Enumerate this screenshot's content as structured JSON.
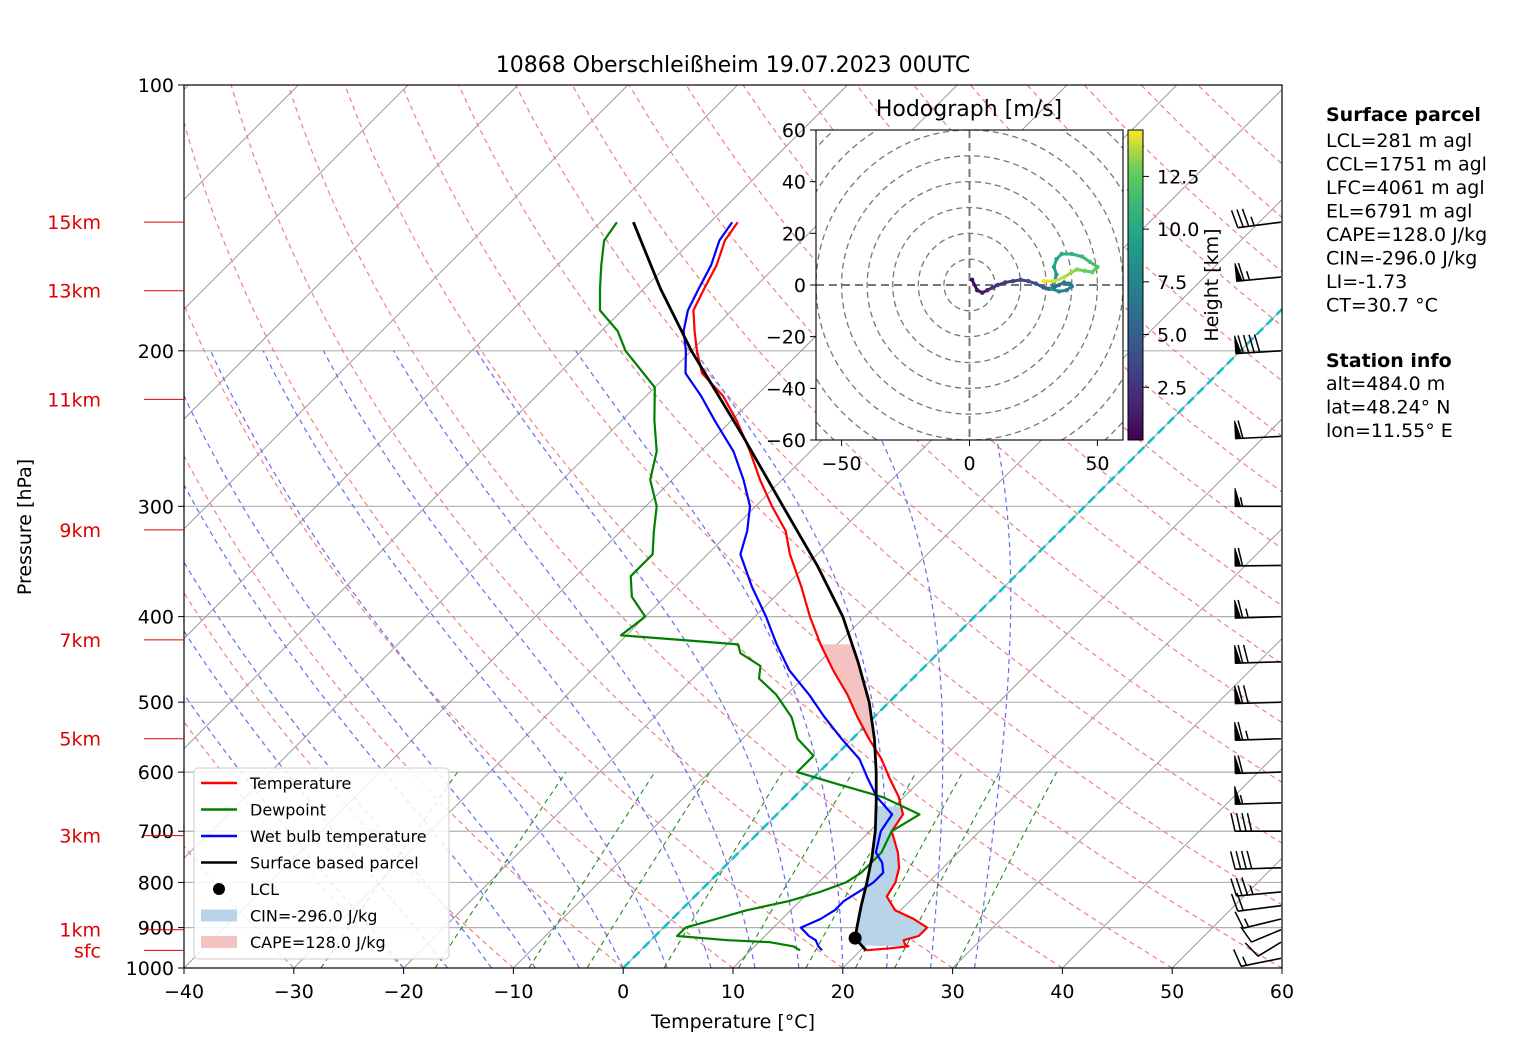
{
  "chart_data": [
    {
      "type": "line",
      "title": "10868 Oberschleißheim 19.07.2023 00UTC",
      "xlabel": "Temperature [°C]",
      "ylabel": "Pressure [hPa]",
      "x_ticks": [
        "−40",
        "−30",
        "−20",
        "−10",
        "0",
        "10",
        "20",
        "30",
        "40",
        "50",
        "60"
      ],
      "x_tick_values": [
        -40,
        -30,
        -20,
        -10,
        0,
        10,
        20,
        30,
        40,
        50,
        60
      ],
      "xlim": [
        -40,
        60
      ],
      "y_ticks": [
        "100",
        "200",
        "300",
        "400",
        "500",
        "600",
        "700",
        "800",
        "900",
        "1000"
      ],
      "y_tick_values": [
        100,
        200,
        300,
        400,
        500,
        600,
        700,
        800,
        900,
        1000
      ],
      "ylim": [
        1000,
        100
      ],
      "yscale": "log",
      "height_labels": [
        {
          "label": "15km",
          "p": 143
        },
        {
          "label": "13km",
          "p": 171
        },
        {
          "label": "11km",
          "p": 227
        },
        {
          "label": "9km",
          "p": 319
        },
        {
          "label": "7km",
          "p": 425
        },
        {
          "label": "5km",
          "p": 550
        },
        {
          "label": "3km",
          "p": 708
        },
        {
          "label": "1km",
          "p": 905
        },
        {
          "label": "sfc",
          "p": 955
        }
      ],
      "legend": [
        {
          "label": "Temperature",
          "color": "#ff0000",
          "kind": "line"
        },
        {
          "label": "Dewpoint",
          "color": "#008000",
          "kind": "line"
        },
        {
          "label": "Wet bulb temperature",
          "color": "#0000ff",
          "kind": "line"
        },
        {
          "label": "Surface based parcel",
          "color": "#000000",
          "kind": "line"
        },
        {
          "label": "LCL",
          "color": "#000000",
          "kind": "dot"
        },
        {
          "label": "CIN=-296.0 J/kg",
          "color": "#b9d3e8",
          "kind": "patch"
        },
        {
          "label": "CAPE=128.0 J/kg",
          "color": "#f5c2c2",
          "kind": "patch"
        }
      ],
      "legend_location": "lower-left",
      "lcl": {
        "p": 925,
        "t": 18.4
      },
      "series": [
        {
          "name": "Temperature",
          "color": "#ff0000",
          "points": [
            [
              955,
              20.5
            ],
            [
              950,
              22.5
            ],
            [
              945,
              24.0
            ],
            [
              940,
              23.5
            ],
            [
              930,
              23.0
            ],
            [
              920,
              24.0
            ],
            [
              900,
              24.0
            ],
            [
              880,
              22.0
            ],
            [
              860,
              19.5
            ],
            [
              830,
              17.5
            ],
            [
              800,
              17.0
            ],
            [
              770,
              16.0
            ],
            [
              740,
              14.5
            ],
            [
              700,
              12.0
            ],
            [
              670,
              11.5
            ],
            [
              640,
              9.5
            ],
            [
              610,
              7.0
            ],
            [
              580,
              4.5
            ],
            [
              550,
              1.5
            ],
            [
              520,
              -1.5
            ],
            [
              490,
              -4.5
            ],
            [
              460,
              -8.0
            ],
            [
              430,
              -11.5
            ],
            [
              400,
              -15.0
            ],
            [
              370,
              -18.5
            ],
            [
              340,
              -22.5
            ],
            [
              320,
              -25.0
            ],
            [
              300,
              -28.5
            ],
            [
              280,
              -32.0
            ],
            [
              260,
              -35.5
            ],
            [
              240,
              -39.5
            ],
            [
              225,
              -43.0
            ],
            [
              212,
              -47.0
            ],
            [
              200,
              -49.5
            ],
            [
              190,
              -51.5
            ],
            [
              180,
              -53.5
            ],
            [
              170,
              -54.5
            ],
            [
              160,
              -55.5
            ],
            [
              150,
              -57.0
            ],
            [
              143,
              -57.5
            ]
          ]
        },
        {
          "name": "Dewpoint",
          "color": "#008000",
          "points": [
            [
              955,
              14.5
            ],
            [
              945,
              13.5
            ],
            [
              935,
              11.0
            ],
            [
              930,
              7.0
            ],
            [
              920,
              2.0
            ],
            [
              900,
              2.0
            ],
            [
              880,
              4.0
            ],
            [
              860,
              6.0
            ],
            [
              840,
              9.0
            ],
            [
              820,
              11.0
            ],
            [
              800,
              12.5
            ],
            [
              780,
              13.0
            ],
            [
              760,
              13.0
            ],
            [
              740,
              13.0
            ],
            [
              700,
              12.0
            ],
            [
              670,
              13.0
            ],
            [
              640,
              8.0
            ],
            [
              620,
              3.0
            ],
            [
              600,
              -2.0
            ],
            [
              575,
              -2.0
            ],
            [
              550,
              -5.0
            ],
            [
              520,
              -7.5
            ],
            [
              490,
              -11.0
            ],
            [
              470,
              -14.0
            ],
            [
              455,
              -15.0
            ],
            [
              440,
              -18.0
            ],
            [
              430,
              -19.0
            ],
            [
              420,
              -30.5
            ],
            [
              400,
              -30.0
            ],
            [
              380,
              -33.0
            ],
            [
              360,
              -35.0
            ],
            [
              340,
              -35.0
            ],
            [
              320,
              -37.0
            ],
            [
              300,
              -39.0
            ],
            [
              280,
              -42.0
            ],
            [
              260,
              -44.0
            ],
            [
              240,
              -47.0
            ],
            [
              220,
              -50.0
            ],
            [
              200,
              -56.0
            ],
            [
              190,
              -58.5
            ],
            [
              180,
              -62.0
            ],
            [
              170,
              -64.0
            ],
            [
              160,
              -66.0
            ],
            [
              150,
              -68.0
            ],
            [
              143,
              -68.5
            ]
          ]
        },
        {
          "name": "Wet bulb temperature",
          "color": "#0000ff",
          "points": [
            [
              955,
              16.5
            ],
            [
              945,
              15.8
            ],
            [
              930,
              15.0
            ],
            [
              920,
              14.0
            ],
            [
              900,
              12.5
            ],
            [
              880,
              13.5
            ],
            [
              860,
              14.0
            ],
            [
              840,
              14.0
            ],
            [
              820,
              14.5
            ],
            [
              800,
              15.0
            ],
            [
              780,
              15.0
            ],
            [
              760,
              14.0
            ],
            [
              740,
              12.5
            ],
            [
              700,
              11.0
            ],
            [
              670,
              10.5
            ],
            [
              640,
              7.5
            ],
            [
              610,
              5.0
            ],
            [
              580,
              2.5
            ],
            [
              550,
              -1.0
            ],
            [
              520,
              -4.5
            ],
            [
              490,
              -8.0
            ],
            [
              460,
              -12.0
            ],
            [
              430,
              -15.5
            ],
            [
              400,
              -19.0
            ],
            [
              370,
              -23.0
            ],
            [
              340,
              -27.0
            ],
            [
              320,
              -28.5
            ],
            [
              300,
              -30.5
            ],
            [
              280,
              -33.5
            ],
            [
              260,
              -37.0
            ],
            [
              240,
              -41.5
            ],
            [
              225,
              -45.0
            ],
            [
              212,
              -48.5
            ],
            [
              200,
              -50.5
            ],
            [
              190,
              -52.5
            ],
            [
              180,
              -54.0
            ],
            [
              170,
              -55.0
            ],
            [
              160,
              -56.0
            ],
            [
              150,
              -57.5
            ],
            [
              143,
              -58.0
            ]
          ]
        },
        {
          "name": "Surface based parcel",
          "color": "#000000",
          "points": [
            [
              955,
              20.5
            ],
            [
              925,
              18.4
            ],
            [
              900,
              17.6
            ],
            [
              850,
              16.0
            ],
            [
              800,
              14.4
            ],
            [
              750,
              12.6
            ],
            [
              700,
              10.5
            ],
            [
              650,
              8.0
            ],
            [
              600,
              5.2
            ],
            [
              550,
              2.0
            ],
            [
              500,
              -1.8
            ],
            [
              450,
              -6.5
            ],
            [
              400,
              -12.0
            ],
            [
              350,
              -19.0
            ],
            [
              300,
              -27.5
            ],
            [
              250,
              -37.5
            ],
            [
              200,
              -50.0
            ],
            [
              170,
              -58.5
            ],
            [
              143,
              -67.0
            ]
          ]
        }
      ]
    },
    {
      "type": "scatter",
      "title": "Hodograph [m/s]",
      "xlim": [
        -60,
        60
      ],
      "ylim": [
        -60,
        60
      ],
      "x_ticks": [
        "−50",
        "0",
        "50"
      ],
      "x_tick_values": [
        -50,
        0,
        50
      ],
      "y_ticks": [
        "60",
        "40",
        "20",
        "0",
        "−20",
        "−40",
        "−60"
      ],
      "y_tick_values": [
        60,
        40,
        20,
        0,
        -20,
        -40,
        -60
      ],
      "colorbar_label": "Height [km]",
      "colorbar_ticks": [
        "2.5",
        "5.0",
        "7.5",
        "10.0",
        "12.5"
      ],
      "colorbar_tick_values": [
        2.5,
        5.0,
        7.5,
        10.0,
        12.5
      ],
      "colorbar_range": [
        0,
        14.7
      ],
      "points": [
        [
          1,
          2,
          0.3
        ],
        [
          3,
          -2,
          0.8
        ],
        [
          5,
          -3,
          1.2
        ],
        [
          7,
          -2,
          1.6
        ],
        [
          9,
          -1,
          2.0
        ],
        [
          11,
          0,
          2.4
        ],
        [
          14,
          1,
          2.8
        ],
        [
          17,
          1.5,
          3.2
        ],
        [
          20,
          2,
          3.6
        ],
        [
          23,
          1.5,
          4.0
        ],
        [
          26,
          0.5,
          4.4
        ],
        [
          29,
          -1,
          4.8
        ],
        [
          31,
          -1.5,
          5.2
        ],
        [
          33,
          -1,
          5.6
        ],
        [
          35,
          0,
          6.0
        ],
        [
          37,
          1,
          6.4
        ],
        [
          39,
          0.5,
          6.8
        ],
        [
          40,
          -0.5,
          7.2
        ],
        [
          38,
          -2,
          7.6
        ],
        [
          35,
          -2.5,
          8.0
        ],
        [
          32,
          -1.5,
          8.4
        ],
        [
          33,
          1,
          8.8
        ],
        [
          34,
          4,
          9.2
        ],
        [
          33,
          7,
          9.6
        ],
        [
          34,
          10,
          10.0
        ],
        [
          36,
          12,
          10.4
        ],
        [
          40,
          12,
          10.8
        ],
        [
          44,
          11,
          11.2
        ],
        [
          47,
          9,
          11.6
        ],
        [
          50,
          7,
          12.0
        ],
        [
          48,
          5,
          12.4
        ],
        [
          45,
          5.5,
          12.8
        ],
        [
          42,
          6,
          13.2
        ],
        [
          40,
          5,
          13.6
        ],
        [
          37,
          3,
          14.0
        ],
        [
          33,
          1.5,
          14.3
        ],
        [
          29,
          1.5,
          14.6
        ]
      ]
    }
  ],
  "surface_parcel": {
    "heading": "Surface parcel",
    "lines": [
      "LCL=281 m agl",
      "CCL=1751 m agl",
      "LFC=4061 m agl",
      "EL=6791 m agl",
      "CAPE=128.0 J/kg",
      "CIN=-296.0 J/kg",
      "LI=-1.73",
      "CT=30.7 °C"
    ]
  },
  "station_info": {
    "heading": "Station info",
    "lines": [
      "alt=484.0 m",
      "lat=48.24° N",
      "lon=11.55° E"
    ]
  },
  "wind_barbs": [
    {
      "p": 975,
      "speed": 15,
      "dir": 240
    },
    {
      "p": 935,
      "speed": 10,
      "dir": 210
    },
    {
      "p": 905,
      "speed": 12,
      "dir": 220
    },
    {
      "p": 880,
      "speed": 14,
      "dir": 235
    },
    {
      "p": 850,
      "speed": 20,
      "dir": 250
    },
    {
      "p": 820,
      "speed": 35,
      "dir": 255
    },
    {
      "p": 770,
      "speed": 40,
      "dir": 265
    },
    {
      "p": 700,
      "speed": 40,
      "dir": 270
    },
    {
      "p": 650,
      "speed": 55,
      "dir": 265
    },
    {
      "p": 600,
      "speed": 60,
      "dir": 265
    },
    {
      "p": 550,
      "speed": 65,
      "dir": 265
    },
    {
      "p": 500,
      "speed": 70,
      "dir": 265
    },
    {
      "p": 450,
      "speed": 70,
      "dir": 265
    },
    {
      "p": 400,
      "speed": 65,
      "dir": 265
    },
    {
      "p": 350,
      "speed": 60,
      "dir": 268
    },
    {
      "p": 300,
      "speed": 55,
      "dir": 270
    },
    {
      "p": 250,
      "speed": 60,
      "dir": 262
    },
    {
      "p": 200,
      "speed": 90,
      "dir": 260
    },
    {
      "p": 165,
      "speed": 65,
      "dir": 255
    },
    {
      "p": 143,
      "speed": 35,
      "dir": 250
    }
  ]
}
